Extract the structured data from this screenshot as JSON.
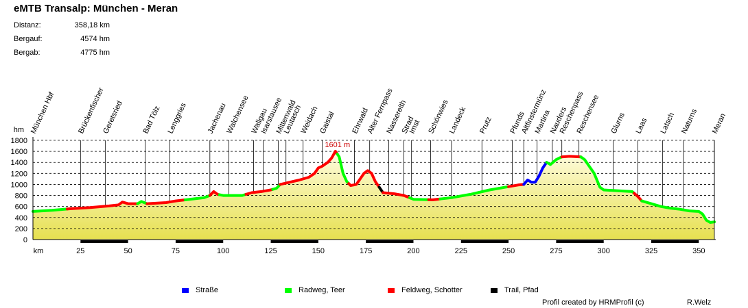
{
  "header": {
    "title": "eMTB Transalp: München - Meran",
    "stats": [
      {
        "label": "Distanz:",
        "value": "358,18 km"
      },
      {
        "label": "Bergauf:",
        "value": "4574 hm"
      },
      {
        "label": "Bergab:",
        "value": "4775 hm"
      }
    ]
  },
  "chart_data": {
    "type": "area",
    "title": "",
    "xlabel": "km",
    "ylabel": "hm",
    "xlim": [
      0,
      358.18
    ],
    "ylim": [
      0,
      1800
    ],
    "x_ticks": [
      25,
      50,
      75,
      100,
      125,
      150,
      175,
      200,
      225,
      250,
      275,
      300,
      325,
      350
    ],
    "y_ticks": [
      0,
      200,
      400,
      600,
      800,
      1000,
      1200,
      1400,
      1600,
      1800
    ],
    "grid": "dashed horizontal",
    "max_annotation": {
      "label": "1601 m",
      "x": 159,
      "y": 1601
    },
    "profile": [
      [
        0,
        510
      ],
      [
        10,
        530
      ],
      [
        20,
        560
      ],
      [
        30,
        580
      ],
      [
        40,
        610
      ],
      [
        45,
        630
      ],
      [
        47,
        680
      ],
      [
        50,
        650
      ],
      [
        55,
        650
      ],
      [
        57,
        690
      ],
      [
        60,
        650
      ],
      [
        70,
        670
      ],
      [
        75,
        700
      ],
      [
        80,
        720
      ],
      [
        85,
        740
      ],
      [
        90,
        760
      ],
      [
        93,
        800
      ],
      [
        95,
        870
      ],
      [
        97,
        820
      ],
      [
        100,
        800
      ],
      [
        110,
        800
      ],
      [
        115,
        850
      ],
      [
        120,
        870
      ],
      [
        125,
        900
      ],
      [
        128,
        930
      ],
      [
        130,
        1000
      ],
      [
        135,
        1040
      ],
      [
        140,
        1080
      ],
      [
        145,
        1130
      ],
      [
        148,
        1200
      ],
      [
        150,
        1300
      ],
      [
        152,
        1330
      ],
      [
        155,
        1400
      ],
      [
        157,
        1480
      ],
      [
        159,
        1601
      ],
      [
        161,
        1500
      ],
      [
        163,
        1200
      ],
      [
        165,
        1050
      ],
      [
        167,
        980
      ],
      [
        170,
        1000
      ],
      [
        172,
        1100
      ],
      [
        174,
        1200
      ],
      [
        176,
        1250
      ],
      [
        178,
        1200
      ],
      [
        180,
        1050
      ],
      [
        182,
        950
      ],
      [
        184,
        850
      ],
      [
        190,
        830
      ],
      [
        195,
        800
      ],
      [
        200,
        730
      ],
      [
        210,
        720
      ],
      [
        220,
        760
      ],
      [
        230,
        820
      ],
      [
        240,
        900
      ],
      [
        250,
        960
      ],
      [
        255,
        990
      ],
      [
        258,
        1000
      ],
      [
        260,
        1080
      ],
      [
        262,
        1040
      ],
      [
        264,
        1040
      ],
      [
        266,
        1150
      ],
      [
        268,
        1300
      ],
      [
        270,
        1400
      ],
      [
        272,
        1360
      ],
      [
        275,
        1450
      ],
      [
        278,
        1500
      ],
      [
        282,
        1510
      ],
      [
        288,
        1500
      ],
      [
        290,
        1450
      ],
      [
        295,
        1200
      ],
      [
        298,
        950
      ],
      [
        300,
        900
      ],
      [
        310,
        880
      ],
      [
        315,
        870
      ],
      [
        318,
        780
      ],
      [
        320,
        700
      ],
      [
        325,
        650
      ],
      [
        330,
        600
      ],
      [
        335,
        570
      ],
      [
        340,
        550
      ],
      [
        345,
        520
      ],
      [
        350,
        510
      ],
      [
        352,
        460
      ],
      [
        354,
        350
      ],
      [
        356,
        310
      ],
      [
        358.18,
        320
      ]
    ],
    "surface_segments": [
      {
        "type": "Radweg, Teer",
        "from": 0,
        "to": 18
      },
      {
        "type": "Feldweg, Schotter",
        "from": 18,
        "to": 55
      },
      {
        "type": "Radweg, Teer",
        "from": 55,
        "to": 60
      },
      {
        "type": "Feldweg, Schotter",
        "from": 60,
        "to": 80
      },
      {
        "type": "Radweg, Teer",
        "from": 80,
        "to": 93
      },
      {
        "type": "Feldweg, Schotter",
        "from": 93,
        "to": 98
      },
      {
        "type": "Radweg, Teer",
        "from": 98,
        "to": 112
      },
      {
        "type": "Feldweg, Schotter",
        "from": 112,
        "to": 126
      },
      {
        "type": "Radweg, Teer",
        "from": 126,
        "to": 130
      },
      {
        "type": "Feldweg, Schotter",
        "from": 130,
        "to": 160
      },
      {
        "type": "Radweg, Teer",
        "from": 160,
        "to": 166
      },
      {
        "type": "Feldweg, Schotter",
        "from": 166,
        "to": 182
      },
      {
        "type": "Trail, Pfad",
        "from": 182,
        "to": 184
      },
      {
        "type": "Feldweg, Schotter",
        "from": 184,
        "to": 198
      },
      {
        "type": "Radweg, Teer",
        "from": 198,
        "to": 208
      },
      {
        "type": "Feldweg, Schotter",
        "from": 208,
        "to": 214
      },
      {
        "type": "Radweg, Teer",
        "from": 214,
        "to": 250
      },
      {
        "type": "Feldweg, Schotter",
        "from": 250,
        "to": 258
      },
      {
        "type": "Straße",
        "from": 258,
        "to": 270
      },
      {
        "type": "Radweg, Teer",
        "from": 270,
        "to": 278
      },
      {
        "type": "Feldweg, Schotter",
        "from": 278,
        "to": 288
      },
      {
        "type": "Radweg, Teer",
        "from": 288,
        "to": 316
      },
      {
        "type": "Feldweg, Schotter",
        "from": 316,
        "to": 320
      },
      {
        "type": "Radweg, Teer",
        "from": 320,
        "to": 358.18
      }
    ],
    "waypoints": [
      {
        "name": "München Hbf",
        "km": 0
      },
      {
        "name": "Brückenfischer",
        "km": 25
      },
      {
        "name": "Geretsried",
        "km": 38
      },
      {
        "name": "Bad Tölz",
        "km": 59
      },
      {
        "name": "Lenggries",
        "km": 72
      },
      {
        "name": "Jachenau",
        "km": 93
      },
      {
        "name": "Walchensee",
        "km": 103
      },
      {
        "name": "Wallgau",
        "km": 116
      },
      {
        "name": "Isarstausee",
        "km": 121
      },
      {
        "name": "Mittenwald",
        "km": 129
      },
      {
        "name": "Leutasch",
        "km": 133
      },
      {
        "name": "Weidach",
        "km": 142
      },
      {
        "name": "Gaistal",
        "km": 152
      },
      {
        "name": "Ehrwald",
        "km": 169
      },
      {
        "name": "Alter Fernpass",
        "km": 177
      },
      {
        "name": "Nassereith",
        "km": 187
      },
      {
        "name": "Strad",
        "km": 195
      },
      {
        "name": "Imst",
        "km": 199
      },
      {
        "name": "Schönwies",
        "km": 209
      },
      {
        "name": "Landeck",
        "km": 220
      },
      {
        "name": "Prutz",
        "km": 236
      },
      {
        "name": "Pfunds",
        "km": 252
      },
      {
        "name": "Altfinstermünz",
        "km": 258
      },
      {
        "name": "Martina",
        "km": 265
      },
      {
        "name": "Nauders",
        "km": 273
      },
      {
        "name": "Reschenpass",
        "km": 278
      },
      {
        "name": "Reschensee",
        "km": 287
      },
      {
        "name": "Glurns",
        "km": 305
      },
      {
        "name": "Laas",
        "km": 318
      },
      {
        "name": "Latsch",
        "km": 331
      },
      {
        "name": "Naturns",
        "km": 342
      },
      {
        "name": "Meran",
        "km": 358.18
      }
    ]
  },
  "legend": [
    {
      "label": "Straße",
      "color": "#0000ff"
    },
    {
      "label": "Radweg, Teer",
      "color": "#00ff00"
    },
    {
      "label": "Feldweg, Schotter",
      "color": "#ff0000"
    },
    {
      "label": "Trail, Pfad",
      "color": "#000000"
    }
  ],
  "colors": {
    "fill_top": "#fffce0",
    "fill_bottom": "#e6e050"
  },
  "footer": {
    "credit": "Profil created by HRMProfil (c)",
    "author": "R.Welz"
  }
}
